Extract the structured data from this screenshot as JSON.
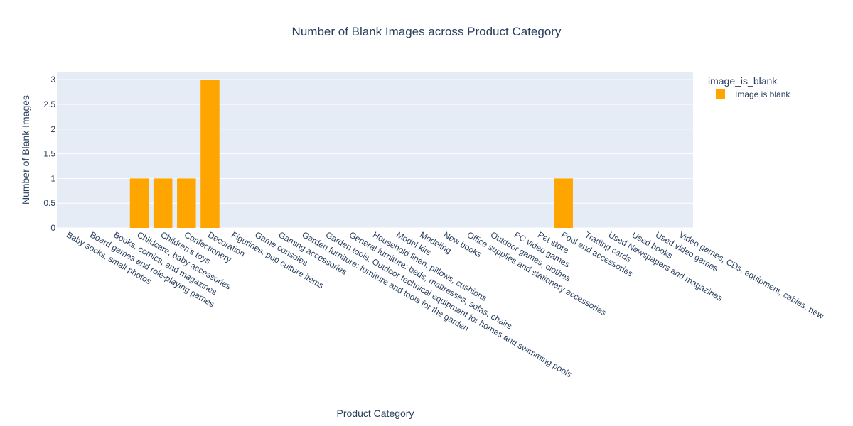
{
  "chart_data": {
    "type": "bar",
    "title": "Number of Blank Images across Product Category",
    "xlabel": "Product Category",
    "ylabel": "Number of Blank Images",
    "categories": [
      "Baby socks, small photos",
      "Board games and role-playing games",
      "Books, comics, and magazines",
      "Childcare, baby accessories",
      "Children's toys",
      "Confectionery",
      "Decoration",
      "Figurines, pop culture items",
      "Game consoles",
      "Gaming accessories",
      "Garden furniture: furniture and tools for the garden",
      "Garden tools, Outdoor technical equipment for homes and swimming pools",
      "General furniture: beds, mattresses, sofas, chairs",
      "Household linen, pillows, cushions",
      "Model kits",
      "Modeling",
      "New books",
      "Office supplies and stationery accessories",
      "Outdoor games, clothes",
      "PC video games",
      "Pet store",
      "Pool and accessories",
      "Trading cards",
      "Used Newspapers and magazines",
      "Used books",
      "Used video games",
      "Video games, CDs, equipment, cables, new"
    ],
    "series": [
      {
        "name": "Image is blank",
        "color": "#FFA500",
        "values": [
          0,
          0,
          0,
          1,
          1,
          1,
          3,
          0,
          0,
          0,
          0,
          0,
          0,
          0,
          0,
          0,
          0,
          0,
          0,
          0,
          0,
          1,
          0,
          0,
          0,
          0,
          0
        ]
      }
    ],
    "yticks": [
      "0",
      "0.5",
      "1",
      "1.5",
      "2",
      "2.5",
      "3"
    ],
    "ylim": [
      0,
      3.16
    ],
    "grid": true,
    "legend": {
      "title": "image_is_blank",
      "placement": "top-right"
    },
    "colors": {
      "plot_background": "#E5ECF6",
      "grid": "#ffffff",
      "text": "#2a3f5f"
    }
  }
}
